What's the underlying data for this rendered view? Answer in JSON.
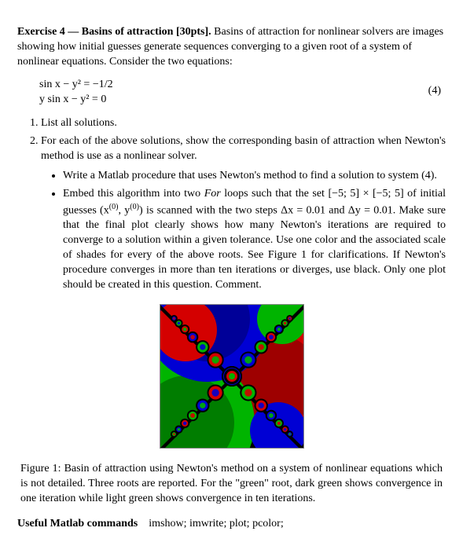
{
  "exercise": {
    "heading_strong": "Exercise 4 — Basins of attraction [30pts].",
    "heading_rest": "Basins of attraction for nonlinear solvers are images showing how initial guesses generate sequences converging to a given root of a system of nonlinear equations. Consider the two equations:"
  },
  "equations": {
    "line1": "sin x − y² = −1/2",
    "line2": "y sin x − y² = 0",
    "number": "(4)"
  },
  "tasks": {
    "item1": "List all solutions.",
    "item2": "For each of the above solutions, show the corresponding basin of attraction when Newton's method is use as a nonlinear solver.",
    "bullet1": "Write a Matlab procedure that uses Newton's method to find a solution to system (4).",
    "bullet2_a": "Embed this algorithm into two ",
    "bullet2_for": "For",
    "bullet2_b": " loops such that the set [−5; 5] × [−5; 5] of initial guesses (x",
    "bullet2_sup1": "(0)",
    "bullet2_c": ", y",
    "bullet2_sup2": "(0)",
    "bullet2_d": ") is scanned with the two steps Δx = 0.01 and Δy = 0.01. Make sure that the final plot clearly shows how many Newton's iterations are required to converge to a solution within a given tolerance. Use one color and the associated scale of shades for every of the above roots. See Figure 1 for clarifications. If Newton's procedure converges in more than ten iterations or diverges, use black. Only one plot should be created in this question. Comment."
  },
  "figure": {
    "caption": "Figure 1: Basin of attraction using Newton's method on a system of nonlinear equations which is not detailed. Three roots are reported. For the \"green\" root, dark green shows convergence in one iteration while light green shows convergence in ten iterations.",
    "colors": {
      "red": "#d40000",
      "dark_red": "#7a0000",
      "green": "#00b400",
      "dark_green": "#005800",
      "blue": "#0000d4",
      "dark_blue": "#000070",
      "black": "#000000"
    }
  },
  "commands": {
    "label": "Useful Matlab commands",
    "list": "imshow; imwrite; plot; pcolor;"
  }
}
